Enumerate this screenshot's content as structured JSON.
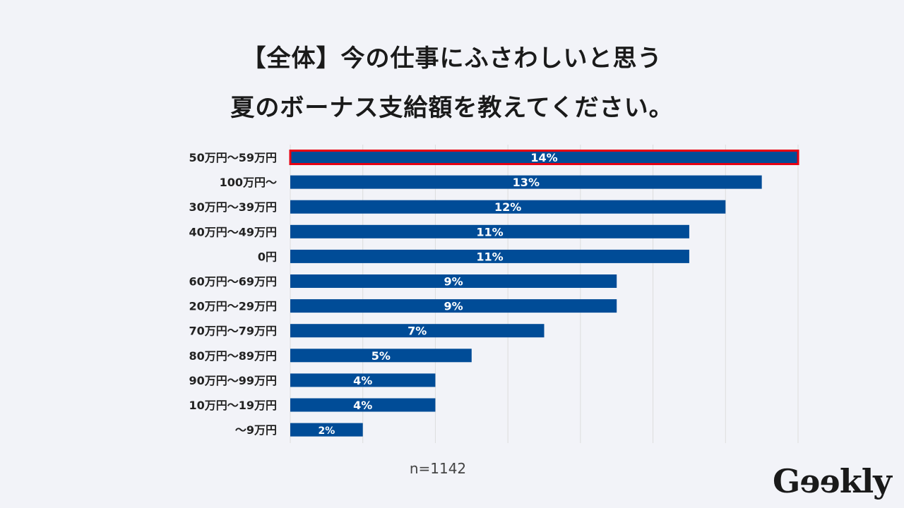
{
  "title_lines": [
    "【全体】今の仕事にふさわしいと思う",
    "夏のボーナス支給額を教えてください。"
  ],
  "note": "n=1142",
  "logo": "Geekly",
  "chart_data": {
    "type": "bar",
    "orientation": "horizontal",
    "categories": [
      "50万円～59万円",
      "100万円～",
      "30万円～39万円",
      "40万円～49万円",
      "0円",
      "60万円～69万円",
      "20万円～29万円",
      "70万円～79万円",
      "80万円～89万円",
      "90万円～99万円",
      "10万円～19万円",
      "～9万円"
    ],
    "values": [
      14,
      13,
      12,
      11,
      11,
      9,
      9,
      7,
      5,
      4,
      4,
      2
    ],
    "data_labels": [
      "14%",
      "13%",
      "12%",
      "11%",
      "11%",
      "9%",
      "9%",
      "7%",
      "5%",
      "4%",
      "4%",
      "2%"
    ],
    "xlim": [
      0,
      14
    ],
    "grid": true,
    "highlighted_category": "50万円～59万円",
    "colors": {
      "bar": "#004c97",
      "highlight_border": "#e60012",
      "grid": "#dddddd",
      "label": "#ffffff"
    }
  }
}
